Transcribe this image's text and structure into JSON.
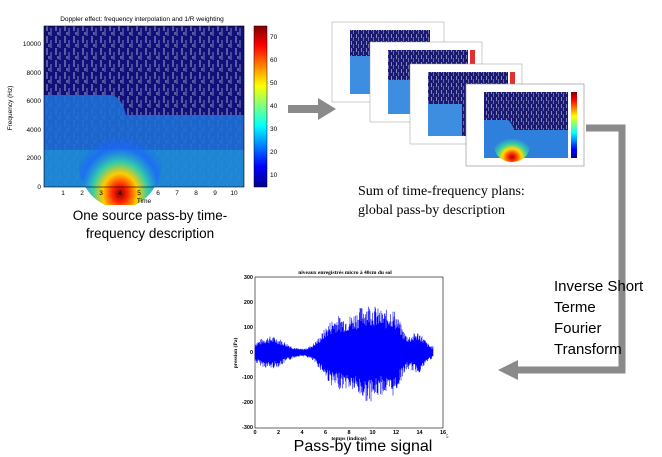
{
  "spectrogram": {
    "title": "Doppler effect: frequency interpolation and 1/R weighting",
    "ylabel": "Frequency (Hz)",
    "xlabel": "Time",
    "yticks": [
      "0",
      "2000",
      "4000",
      "6000",
      "8000",
      "10000"
    ],
    "xticks": [
      "1",
      "2",
      "3",
      "4",
      "5",
      "6",
      "7",
      "8",
      "9",
      "10"
    ],
    "colorbar_ticks": [
      "70",
      "60",
      "50",
      "40",
      "30",
      "20",
      "10"
    ],
    "caption": "One source pass-by time-\nfrequency description"
  },
  "stack": {
    "caption": "Sum of time-frequency plans:\nglobal pass-by description"
  },
  "transform": {
    "label": "Inverse Short\nTerme\nFourier\nTransform"
  },
  "time_signal": {
    "title": "niveaux enregistrés micro à 40cm du sol",
    "ylabel": "pression (Pa)",
    "xlabel": "temps (indices)",
    "yticks": [
      "300",
      "200",
      "100",
      "0",
      "-100",
      "-200",
      "-300"
    ],
    "xticks": [
      "0",
      "2",
      "4",
      "6",
      "8",
      "10",
      "12",
      "14",
      "16"
    ],
    "x_exponent": "5",
    "caption": "Pass-by time signal"
  },
  "colors": {
    "arrow": "#8a8a8a",
    "signal": "#0000ff",
    "spectro_bg": "#10107a"
  }
}
